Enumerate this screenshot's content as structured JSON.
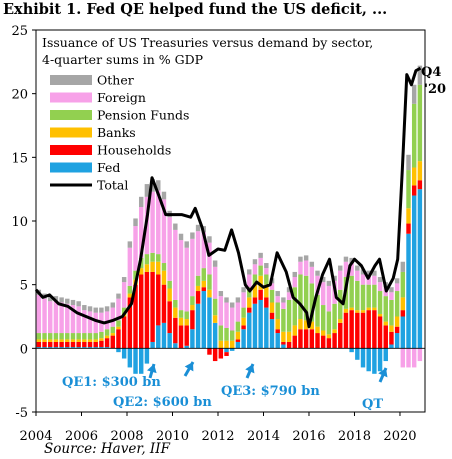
{
  "title": "Exhibit 1. Fed QE helped fund the US deficit, ...",
  "source": "Source: Haver, IIF",
  "chart_data": {
    "type": "bar",
    "subtitle_lines": [
      "Issuance of US Treasuries versus demand by sector,",
      "4-quarter sums in % GDP"
    ],
    "xlabel": "",
    "ylabel": "",
    "ylim": [
      -5,
      25
    ],
    "xlim": [
      2004,
      2021.1
    ],
    "y_ticks": [
      "-5",
      "0",
      "5",
      "10",
      "15",
      "20",
      "25"
    ],
    "x_ticks": [
      "2004",
      "2006",
      "2008",
      "2010",
      "2012",
      "2014",
      "2016",
      "2018",
      "2020"
    ],
    "grid": false,
    "legend_position": "top-left",
    "colors": {
      "Other": "#a6a6a6",
      "Foreign": "#f7a1e8",
      "Pension Funds": "#92d050",
      "Banks": "#ffc000",
      "Households": "#ff0000",
      "Fed": "#1fa2e1",
      "Total": "#000000"
    },
    "legend": [
      "Other",
      "Foreign",
      "Pension Funds",
      "Banks",
      "Households",
      "Fed",
      "Total"
    ],
    "quarters": [
      "2004Q1",
      "2004Q2",
      "2004Q3",
      "2004Q4",
      "2005Q1",
      "2005Q2",
      "2005Q3",
      "2005Q4",
      "2006Q1",
      "2006Q2",
      "2006Q3",
      "2006Q4",
      "2007Q1",
      "2007Q2",
      "2007Q3",
      "2007Q4",
      "2008Q1",
      "2008Q2",
      "2008Q3",
      "2008Q4",
      "2009Q1",
      "2009Q2",
      "2009Q3",
      "2009Q4",
      "2010Q1",
      "2010Q2",
      "2010Q3",
      "2010Q4",
      "2011Q1",
      "2011Q2",
      "2011Q3",
      "2011Q4",
      "2012Q1",
      "2012Q2",
      "2012Q3",
      "2012Q4",
      "2013Q1",
      "2013Q2",
      "2013Q3",
      "2013Q4",
      "2014Q1",
      "2014Q2",
      "2014Q3",
      "2014Q4",
      "2015Q1",
      "2015Q2",
      "2015Q3",
      "2015Q4",
      "2016Q1",
      "2016Q2",
      "2016Q3",
      "2016Q4",
      "2017Q1",
      "2017Q2",
      "2017Q3",
      "2017Q4",
      "2018Q1",
      "2018Q2",
      "2018Q3",
      "2018Q4",
      "2019Q1",
      "2019Q2",
      "2019Q3",
      "2019Q4",
      "2020Q1",
      "2020Q2",
      "2020Q3",
      "2020Q4"
    ],
    "series": [
      {
        "name": "Fed",
        "values": [
          0.1,
          0.1,
          0.1,
          0.1,
          0.1,
          0.1,
          0.1,
          0.1,
          0.1,
          0.1,
          0.1,
          0.1,
          0.1,
          0.0,
          -0.3,
          -0.8,
          -1.5,
          -2.0,
          -2.0,
          -1.2,
          0.5,
          1.8,
          2.0,
          1.2,
          0.4,
          0.0,
          0.2,
          1.5,
          3.5,
          4.5,
          4.0,
          2.0,
          0.0,
          -0.3,
          -0.2,
          0.5,
          1.5,
          2.8,
          3.5,
          3.8,
          3.2,
          2.3,
          1.2,
          0.3,
          0.0,
          0.0,
          0.0,
          0.0,
          0.0,
          0.0,
          0.0,
          0.0,
          0.0,
          0.0,
          0.0,
          -0.3,
          -0.9,
          -1.5,
          -1.8,
          -2.0,
          -1.8,
          -1.0,
          0.3,
          1.2,
          2.5,
          9.0,
          12.0,
          12.5
        ]
      },
      {
        "name": "Households",
        "values": [
          0.4,
          0.4,
          0.4,
          0.4,
          0.4,
          0.4,
          0.4,
          0.4,
          0.4,
          0.4,
          0.4,
          0.5,
          0.7,
          1.0,
          1.5,
          2.5,
          4.0,
          5.0,
          5.8,
          6.0,
          5.5,
          4.0,
          3.0,
          2.5,
          2.0,
          1.8,
          1.6,
          1.5,
          1.0,
          0.3,
          -0.5,
          -1.0,
          -0.8,
          -0.3,
          0.0,
          0.2,
          0.3,
          0.4,
          0.5,
          0.8,
          0.8,
          0.5,
          0.3,
          0.2,
          0.5,
          1.0,
          1.5,
          1.5,
          1.5,
          1.2,
          1.0,
          0.8,
          1.2,
          2.0,
          2.8,
          3.0,
          2.8,
          2.8,
          3.0,
          3.0,
          2.5,
          1.8,
          1.0,
          0.5,
          0.5,
          0.8,
          0.8,
          0.7
        ]
      },
      {
        "name": "Banks",
        "values": [
          0.2,
          0.2,
          0.2,
          0.2,
          0.2,
          0.2,
          0.2,
          0.2,
          0.2,
          0.2,
          0.2,
          0.2,
          0.2,
          0.2,
          0.2,
          0.2,
          0.3,
          0.4,
          0.5,
          0.6,
          0.8,
          1.0,
          1.1,
          1.0,
          0.8,
          0.6,
          0.5,
          0.4,
          0.4,
          0.5,
          0.6,
          0.6,
          0.6,
          0.6,
          0.6,
          0.6,
          0.6,
          0.8,
          1.0,
          1.1,
          1.0,
          0.8,
          0.8,
          0.8,
          0.8,
          0.8,
          0.8,
          0.7,
          0.6,
          0.5,
          0.4,
          0.3,
          0.3,
          0.3,
          0.3,
          0.2,
          0.2,
          0.2,
          0.2,
          0.2,
          0.2,
          0.3,
          0.5,
          0.8,
          1.0,
          1.2,
          1.4,
          1.5
        ]
      },
      {
        "name": "Pension Funds",
        "values": [
          0.5,
          0.5,
          0.5,
          0.5,
          0.5,
          0.5,
          0.5,
          0.5,
          0.5,
          0.5,
          0.5,
          0.5,
          0.5,
          0.5,
          0.5,
          0.5,
          0.6,
          0.7,
          0.8,
          0.8,
          0.7,
          0.6,
          0.6,
          0.6,
          0.6,
          0.6,
          0.6,
          0.7,
          0.8,
          1.0,
          1.2,
          1.3,
          1.2,
          1.0,
          0.8,
          0.8,
          0.8,
          0.8,
          0.8,
          0.8,
          0.8,
          1.0,
          1.3,
          1.8,
          2.5,
          3.0,
          3.5,
          3.5,
          3.0,
          2.5,
          2.0,
          1.8,
          2.0,
          2.3,
          2.5,
          2.5,
          2.3,
          2.0,
          1.8,
          1.8,
          1.8,
          2.0,
          2.0,
          2.0,
          2.0,
          3.0,
          5.0,
          6.0
        ]
      },
      {
        "name": "Foreign",
        "values": [
          3.0,
          2.7,
          2.5,
          2.5,
          2.4,
          2.3,
          2.2,
          2.1,
          1.8,
          1.7,
          1.6,
          1.5,
          1.4,
          1.5,
          1.7,
          2.0,
          3.0,
          3.5,
          4.0,
          4.5,
          4.8,
          5.0,
          5.0,
          5.0,
          5.5,
          5.5,
          5.0,
          4.5,
          3.5,
          2.8,
          2.5,
          2.5,
          2.3,
          2.0,
          1.8,
          1.5,
          1.2,
          1.0,
          0.8,
          0.6,
          0.5,
          0.5,
          0.5,
          0.5,
          0.6,
          0.8,
          1.0,
          1.2,
          1.3,
          1.5,
          1.8,
          2.0,
          1.8,
          1.5,
          1.2,
          1.0,
          0.8,
          0.8,
          0.7,
          0.7,
          0.7,
          0.7,
          0.6,
          0.6,
          -1.5,
          -1.5,
          -1.5,
          -1.0
        ]
      },
      {
        "name": "Other",
        "values": [
          0.4,
          0.4,
          0.4,
          0.4,
          0.4,
          0.4,
          0.4,
          0.4,
          0.4,
          0.4,
          0.4,
          0.4,
          0.4,
          0.4,
          0.4,
          0.4,
          0.5,
          0.6,
          0.8,
          1.0,
          1.0,
          0.8,
          0.6,
          0.5,
          0.5,
          0.5,
          0.5,
          0.5,
          0.5,
          0.5,
          0.5,
          0.5,
          0.4,
          0.4,
          0.4,
          0.4,
          0.4,
          0.4,
          0.4,
          0.4,
          0.4,
          0.4,
          0.4,
          0.4,
          0.4,
          0.4,
          0.4,
          0.4,
          0.4,
          0.4,
          0.4,
          0.4,
          0.4,
          0.4,
          0.4,
          0.4,
          0.4,
          0.4,
          0.4,
          0.4,
          0.4,
          0.4,
          0.4,
          0.4,
          0.8,
          1.2,
          1.5,
          1.5
        ]
      },
      {
        "name": "Total",
        "type": "line",
        "x": [
          2004.0,
          2004.3,
          2004.6,
          2005.0,
          2005.4,
          2005.8,
          2006.2,
          2006.6,
          2007.0,
          2007.4,
          2007.8,
          2008.2,
          2008.6,
          2008.9,
          2009.1,
          2009.4,
          2009.7,
          2010.0,
          2010.4,
          2010.8,
          2011.0,
          2011.3,
          2011.6,
          2012.0,
          2012.3,
          2012.6,
          2012.9,
          2013.2,
          2013.4,
          2013.7,
          2014.0,
          2014.3,
          2014.6,
          2015.0,
          2015.3,
          2015.6,
          2015.9,
          2016.0,
          2016.3,
          2016.6,
          2016.9,
          2017.2,
          2017.5,
          2017.8,
          2018.0,
          2018.3,
          2018.6,
          2018.9,
          2019.1,
          2019.4,
          2019.7,
          2019.9,
          2020.1,
          2020.3,
          2020.5,
          2020.7,
          2020.9
        ],
        "values": [
          4.6,
          4.0,
          4.2,
          3.5,
          3.3,
          2.8,
          2.5,
          2.2,
          2.0,
          2.2,
          2.5,
          3.5,
          7.0,
          10.5,
          13.4,
          12.0,
          10.5,
          10.5,
          10.5,
          10.3,
          11.0,
          9.5,
          7.3,
          7.8,
          7.7,
          9.3,
          7.5,
          5.0,
          4.5,
          5.2,
          4.8,
          5.0,
          7.5,
          6.0,
          4.0,
          3.5,
          2.8,
          1.7,
          4.0,
          5.8,
          7.0,
          4.0,
          3.5,
          6.5,
          7.0,
          6.5,
          5.5,
          6.5,
          7.0,
          4.5,
          5.5,
          7.0,
          14.0,
          21.5,
          20.7,
          21.8,
          22.0
        ]
      }
    ],
    "annotations": [
      {
        "text": "QE1: $300 bn",
        "x": 2009.0,
        "y": -1.0
      },
      {
        "text": "QE2: $600 bn",
        "x": 2010.5,
        "y": -2.0
      },
      {
        "text": "QE3: $790 bn",
        "x": 2013.5,
        "y": -1.8
      },
      {
        "text": "QT",
        "x": 2018.6,
        "y": -1.7
      },
      {
        "text": "Q4 '20",
        "x": 2020.9,
        "y": 22.0
      }
    ]
  }
}
